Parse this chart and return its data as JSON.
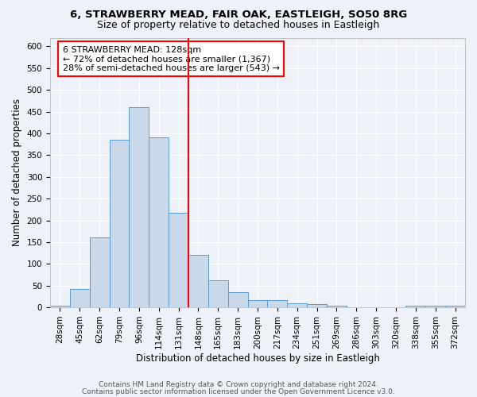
{
  "title_line1": "6, STRAWBERRY MEAD, FAIR OAK, EASTLEIGH, SO50 8RG",
  "title_line2": "Size of property relative to detached houses in Eastleigh",
  "xlabel": "Distribution of detached houses by size in Eastleigh",
  "ylabel": "Number of detached properties",
  "bar_labels": [
    "28sqm",
    "45sqm",
    "62sqm",
    "79sqm",
    "96sqm",
    "114sqm",
    "131sqm",
    "148sqm",
    "165sqm",
    "183sqm",
    "200sqm",
    "217sqm",
    "234sqm",
    "251sqm",
    "269sqm",
    "286sqm",
    "303sqm",
    "320sqm",
    "338sqm",
    "355sqm",
    "372sqm"
  ],
  "bar_values": [
    4,
    42,
    160,
    385,
    460,
    390,
    218,
    120,
    62,
    35,
    16,
    16,
    10,
    7,
    4,
    1,
    1,
    1,
    3,
    3,
    3
  ],
  "bar_color": "#c9d9ea",
  "bar_edge_color": "#5b9bd5",
  "vline_pos": 6.5,
  "vline_color": "red",
  "annotation_text": "6 STRAWBERRY MEAD: 128sqm\n← 72% of detached houses are smaller (1,367)\n28% of semi-detached houses are larger (543) →",
  "annotation_box_color": "white",
  "annotation_box_edge_color": "red",
  "ylim": [
    0,
    620
  ],
  "yticks": [
    0,
    50,
    100,
    150,
    200,
    250,
    300,
    350,
    400,
    450,
    500,
    550,
    600
  ],
  "bg_color": "#eef2f8",
  "grid_color": "white",
  "footer_line1": "Contains HM Land Registry data © Crown copyright and database right 2024.",
  "footer_line2": "Contains public sector information licensed under the Open Government Licence v3.0.",
  "title_fontsize": 9.5,
  "subtitle_fontsize": 9,
  "axis_label_fontsize": 8.5,
  "tick_fontsize": 7.5,
  "annotation_fontsize": 8,
  "footer_fontsize": 6.5
}
